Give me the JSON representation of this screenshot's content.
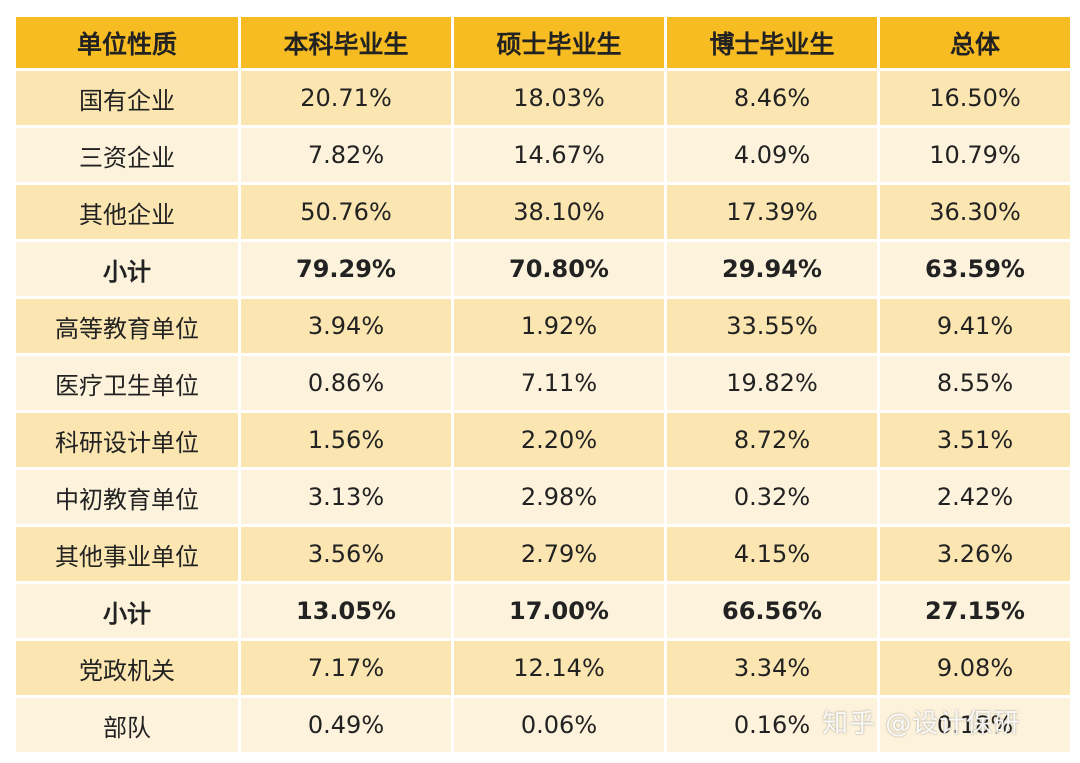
{
  "table": {
    "headers": [
      "单位性质",
      "本科毕业生",
      "硕士毕业生",
      "博士毕业生",
      "总体"
    ],
    "rows": [
      {
        "cells": [
          "国有企业",
          "20.71%",
          "18.03%",
          "8.46%",
          "16.50%"
        ],
        "subtotal": false
      },
      {
        "cells": [
          "三资企业",
          "7.82%",
          "14.67%",
          "4.09%",
          "10.79%"
        ],
        "subtotal": false
      },
      {
        "cells": [
          "其他企业",
          "50.76%",
          "38.10%",
          "17.39%",
          "36.30%"
        ],
        "subtotal": false
      },
      {
        "cells": [
          "小计",
          "79.29%",
          "70.80%",
          "29.94%",
          "63.59%"
        ],
        "subtotal": true
      },
      {
        "cells": [
          "高等教育单位",
          "3.94%",
          "1.92%",
          "33.55%",
          "9.41%"
        ],
        "subtotal": false
      },
      {
        "cells": [
          "医疗卫生单位",
          "0.86%",
          "7.11%",
          "19.82%",
          "8.55%"
        ],
        "subtotal": false
      },
      {
        "cells": [
          "科研设计单位",
          "1.56%",
          "2.20%",
          "8.72%",
          "3.51%"
        ],
        "subtotal": false
      },
      {
        "cells": [
          "中初教育单位",
          "3.13%",
          "2.98%",
          "0.32%",
          "2.42%"
        ],
        "subtotal": false
      },
      {
        "cells": [
          "其他事业单位",
          "3.56%",
          "2.79%",
          "4.15%",
          "3.26%"
        ],
        "subtotal": false
      },
      {
        "cells": [
          "小计",
          "13.05%",
          "17.00%",
          "66.56%",
          "27.15%"
        ],
        "subtotal": true
      },
      {
        "cells": [
          "党政机关",
          "7.17%",
          "12.14%",
          "3.34%",
          "9.08%"
        ],
        "subtotal": false
      },
      {
        "cells": [
          "部队",
          "0.49%",
          "0.06%",
          "0.16%",
          "0.18%"
        ],
        "subtotal": false
      }
    ]
  },
  "watermark": "知乎 @设计保研",
  "colors": {
    "header_bg": "#f7bc22",
    "row_odd_bg": "#fbe6b2",
    "row_even_bg": "#fdf3dc"
  }
}
